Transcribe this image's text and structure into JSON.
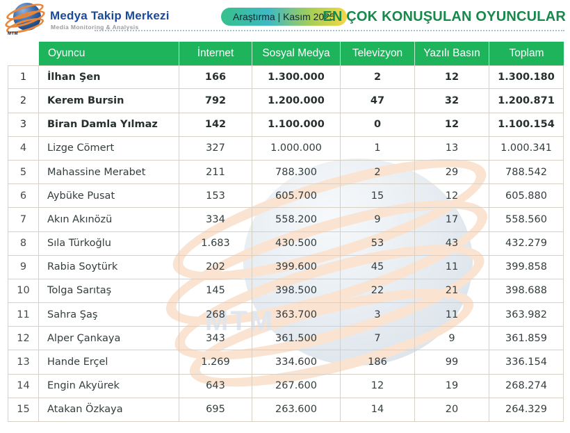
{
  "brand": {
    "name": "Medya Takip Merkezi",
    "tagline": "Media Monitoring & Analysis",
    "logo_text": "MTM",
    "name_color": "#1a4a9a"
  },
  "header": {
    "badge_label": "Araştırma | Kasım 2025",
    "title_color": "#17894b",
    "badge_gradient": [
      "#36c08c",
      "#3fb9c3",
      "#f5d746"
    ]
  },
  "watermark": {
    "text": "MTM"
  },
  "table_style": {
    "header_bg": "#1eb45c",
    "header_text_color": "#ffffff",
    "border_color": "#d7d1c5"
  },
  "chart_data": {
    "type": "table",
    "title": "EN ÇOK KONUŞULAN OYUNCULAR",
    "period": "Araştırma | Kasım 2025",
    "columns": [
      "Oyuncu",
      "İnternet",
      "Sosyal Medya",
      "Televizyon",
      "Yazılı Basın",
      "Toplam"
    ],
    "rows": [
      {
        "rank": "1",
        "name": "İlhan Şen",
        "internet": "166",
        "sosyal_medya": "1.300.000",
        "televizyon": "2",
        "yazili_basin": "12",
        "toplam": "1.300.180",
        "bold": true
      },
      {
        "rank": "2",
        "name": "Kerem Bursin",
        "internet": "792",
        "sosyal_medya": "1.200.000",
        "televizyon": "47",
        "yazili_basin": "32",
        "toplam": "1.200.871",
        "bold": true
      },
      {
        "rank": "3",
        "name": "Biran Damla Yılmaz",
        "internet": "142",
        "sosyal_medya": "1.100.000",
        "televizyon": "0",
        "yazili_basin": "12",
        "toplam": "1.100.154",
        "bold": true
      },
      {
        "rank": "4",
        "name": "Lizge Cömert",
        "internet": "327",
        "sosyal_medya": "1.000.000",
        "televizyon": "1",
        "yazili_basin": "13",
        "toplam": "1.000.341",
        "bold": false
      },
      {
        "rank": "5",
        "name": "Mahassine Merabet",
        "internet": "211",
        "sosyal_medya": "788.300",
        "televizyon": "2",
        "yazili_basin": "29",
        "toplam": "788.542",
        "bold": false
      },
      {
        "rank": "6",
        "name": "Aybüke Pusat",
        "internet": "153",
        "sosyal_medya": "605.700",
        "televizyon": "15",
        "yazili_basin": "12",
        "toplam": "605.880",
        "bold": false
      },
      {
        "rank": "7",
        "name": "Akın Akınözü",
        "internet": "334",
        "sosyal_medya": "558.200",
        "televizyon": "9",
        "yazili_basin": "17",
        "toplam": "558.560",
        "bold": false
      },
      {
        "rank": "8",
        "name": "Sıla Türkoğlu",
        "internet": "1.683",
        "sosyal_medya": "430.500",
        "televizyon": "53",
        "yazili_basin": "43",
        "toplam": "432.279",
        "bold": false
      },
      {
        "rank": "9",
        "name": "Rabia Soytürk",
        "internet": "202",
        "sosyal_medya": "399.600",
        "televizyon": "45",
        "yazili_basin": "11",
        "toplam": "399.858",
        "bold": false
      },
      {
        "rank": "10",
        "name": "Tolga Sarıtaş",
        "internet": "145",
        "sosyal_medya": "398.500",
        "televizyon": "22",
        "yazili_basin": "21",
        "toplam": "398.688",
        "bold": false
      },
      {
        "rank": "11",
        "name": "Sahra Şaş",
        "internet": "268",
        "sosyal_medya": "363.700",
        "televizyon": "3",
        "yazili_basin": "11",
        "toplam": "363.982",
        "bold": false
      },
      {
        "rank": "12",
        "name": "Alper Çankaya",
        "internet": "343",
        "sosyal_medya": "361.500",
        "televizyon": "7",
        "yazili_basin": "9",
        "toplam": "361.859",
        "bold": false
      },
      {
        "rank": "13",
        "name": "Hande Erçel",
        "internet": "1.269",
        "sosyal_medya": "334.600",
        "televizyon": "186",
        "yazili_basin": "99",
        "toplam": "336.154",
        "bold": false
      },
      {
        "rank": "14",
        "name": "Engin Akyürek",
        "internet": "643",
        "sosyal_medya": "267.600",
        "televizyon": "12",
        "yazili_basin": "19",
        "toplam": "268.274",
        "bold": false
      },
      {
        "rank": "15",
        "name": "Atakan Özkaya",
        "internet": "695",
        "sosyal_medya": "263.600",
        "televizyon": "14",
        "yazili_basin": "20",
        "toplam": "264.329",
        "bold": false
      }
    ]
  }
}
